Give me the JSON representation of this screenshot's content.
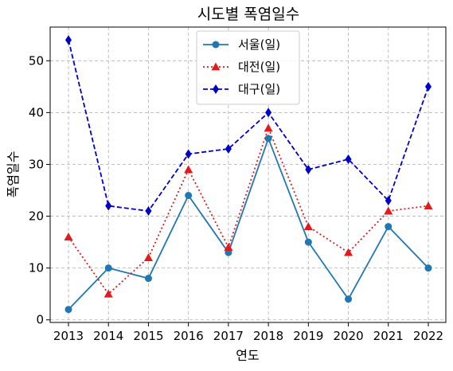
{
  "chart_data": {
    "type": "line",
    "title": "시도별 폭염일수",
    "xlabel": "연도",
    "ylabel": "폭염일수",
    "x": [
      2013,
      2014,
      2015,
      2016,
      2017,
      2018,
      2019,
      2020,
      2021,
      2022
    ],
    "ylim": [
      -0.5,
      56.5
    ],
    "yticks": [
      0,
      10,
      20,
      30,
      40,
      50
    ],
    "grid": true,
    "legend_position": "top-center",
    "series": [
      {
        "name": "서울(일)",
        "values": [
          2,
          10,
          8,
          24,
          13,
          35,
          15,
          4,
          18,
          10
        ],
        "color": "#1f77b4",
        "linestyle": "solid",
        "marker": "circle"
      },
      {
        "name": "대전(일)",
        "values": [
          16,
          5,
          12,
          29,
          14,
          37,
          18,
          13,
          21,
          22
        ],
        "color": "#e31a1c",
        "linestyle": "dotted",
        "marker": "triangle"
      },
      {
        "name": "대구(일)",
        "values": [
          54,
          22,
          21,
          32,
          33,
          40,
          29,
          31,
          23,
          45
        ],
        "color": "#0000cc",
        "linestyle": "dashed",
        "marker": "diamond"
      }
    ]
  }
}
